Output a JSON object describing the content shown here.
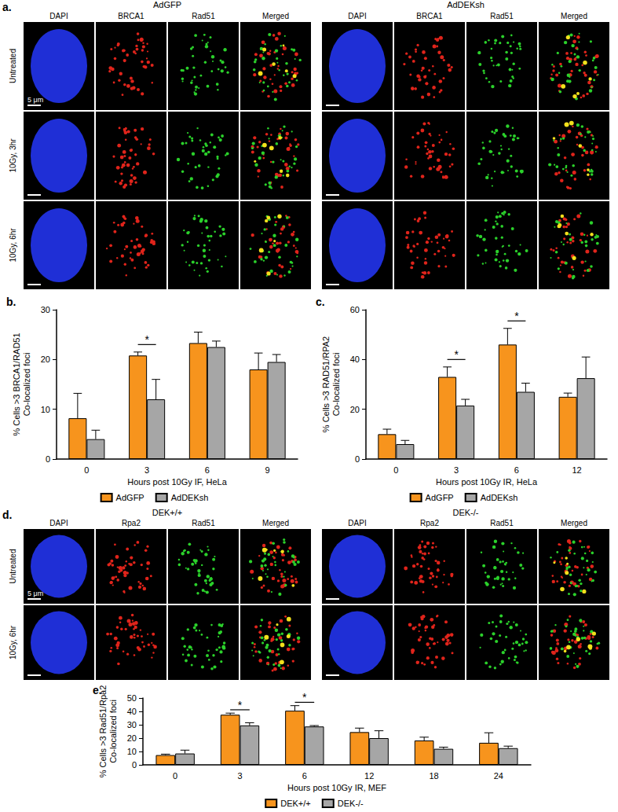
{
  "panels": [
    {
      "label": "a.",
      "groups": [
        {
          "title": "AdGFP",
          "columns": [
            "DAPI",
            "BRCA1",
            "Rad51",
            "Merged"
          ]
        },
        {
          "title": "AdDEKsh",
          "columns": [
            "DAPI",
            "BRCA1",
            "Rad51",
            "Merged"
          ]
        }
      ],
      "rows": [
        "Untreated",
        "10Gy, 3hr",
        "10Gy, 6hr"
      ],
      "scale_bar": "5 μm"
    },
    {
      "label": "d.",
      "groups": [
        {
          "title": "DEK+/+",
          "columns": [
            "DAPI",
            "Rpa2",
            "Rad51",
            "Merged"
          ]
        },
        {
          "title": "DEK-/-",
          "columns": [
            "DAPI",
            "Rpa2",
            "Rad51",
            "Merged"
          ]
        }
      ],
      "rows": [
        "Untreated",
        "10Gy, 6hr"
      ],
      "scale_bar": "5 μm"
    }
  ],
  "chart_data": [
    {
      "type": "bar",
      "title": "b.",
      "xlabel": "Hours post 10Gy IF, HeLa",
      "ylabel": "% Cells >3 BRCA1/RAD51\nCo-localized foci",
      "categories": [
        "0",
        "3",
        "6",
        "9"
      ],
      "series": [
        {
          "name": "AdGFP",
          "color": "#F7941D",
          "values": [
            8.2,
            20.8,
            23.3,
            18
          ],
          "errors": [
            5,
            0.7,
            2.2,
            3.3
          ]
        },
        {
          "name": "AdDEKsh",
          "color": "#A6A6A6",
          "values": [
            4,
            12,
            22.5,
            19.5
          ],
          "errors": [
            1.8,
            4,
            1.2,
            1.5
          ]
        }
      ],
      "annotations": [
        {
          "category": "3",
          "text": "*"
        }
      ],
      "ylim": [
        0,
        30
      ],
      "yticks": [
        0,
        10,
        20,
        30
      ],
      "grid": false,
      "legend": "bottom"
    },
    {
      "type": "bar",
      "title": "c.",
      "xlabel": "Hours post 10Gy IR, HeLa",
      "ylabel": "% Cells >3 RAD51/RPA2\nCo-localized foci",
      "categories": [
        "0",
        "3",
        "6",
        "12"
      ],
      "series": [
        {
          "name": "AdGFP",
          "color": "#F7941D",
          "values": [
            10,
            33,
            46,
            25
          ],
          "errors": [
            2,
            4,
            6.5,
            1.5
          ]
        },
        {
          "name": "AdDEKsh",
          "color": "#A6A6A6",
          "values": [
            6,
            21.5,
            27,
            32.5
          ],
          "errors": [
            1.5,
            2.5,
            3.5,
            8.5
          ]
        }
      ],
      "annotations": [
        {
          "category": "3",
          "text": "*"
        },
        {
          "category": "6",
          "text": "*"
        }
      ],
      "ylim": [
        0,
        60
      ],
      "yticks": [
        0,
        20,
        40,
        60
      ],
      "grid": false,
      "legend": "bottom"
    },
    {
      "type": "bar",
      "title": "e.",
      "xlabel": "Hours post 10Gy IR, MEF",
      "ylabel": "% Cells >3 Rad51/Rpa2\nCo-localized foci",
      "categories": [
        "0",
        "3",
        "6",
        "12",
        "18",
        "24"
      ],
      "series": [
        {
          "name": "DEK+/+",
          "color": "#F7941D",
          "values": [
            7.3,
            37.5,
            40.5,
            24.5,
            18.2,
            16.5
          ],
          "errors": [
            0.7,
            1.2,
            3.8,
            3,
            2.5,
            7.5
          ]
        },
        {
          "name": "DEK-/-",
          "color": "#A6A6A6",
          "values": [
            8.5,
            29.5,
            28.7,
            20,
            12,
            12.5
          ],
          "errors": [
            2.5,
            2,
            0.7,
            5.5,
            1.2,
            1.5
          ]
        }
      ],
      "annotations": [
        {
          "category": "3",
          "text": "*"
        },
        {
          "category": "6",
          "text": "*"
        }
      ],
      "ylim": [
        0,
        50
      ],
      "yticks": [
        0,
        10,
        20,
        30,
        40,
        50
      ],
      "grid": false,
      "legend": "bottom"
    }
  ]
}
